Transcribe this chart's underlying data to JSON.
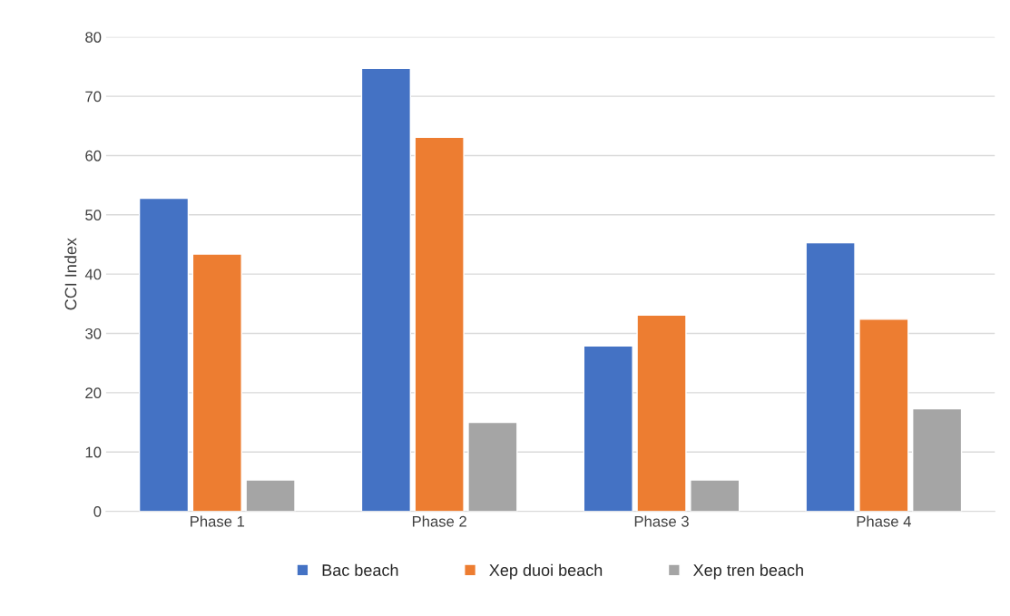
{
  "chart_data": {
    "type": "bar",
    "ylabel": "CCI Index",
    "categories": [
      "Phase 1",
      "Phase 2",
      "Phase 3",
      "Phase 4"
    ],
    "series": [
      {
        "name": "Bac beach",
        "color": "#4472c4",
        "values": [
          52.8,
          74.7,
          27.9,
          45.3
        ]
      },
      {
        "name": "Xep duoi beach",
        "color": "#ed7d31",
        "values": [
          43.4,
          63.1,
          33.1,
          32.4
        ]
      },
      {
        "name": "Xep tren beach",
        "color": "#a5a5a5",
        "values": [
          5.3,
          15.0,
          5.3,
          17.3
        ]
      }
    ],
    "ylim": [
      0,
      80
    ],
    "yticks": [
      0,
      10,
      20,
      30,
      40,
      50,
      60,
      70,
      80
    ],
    "grid": "y",
    "legend": "bottom"
  }
}
